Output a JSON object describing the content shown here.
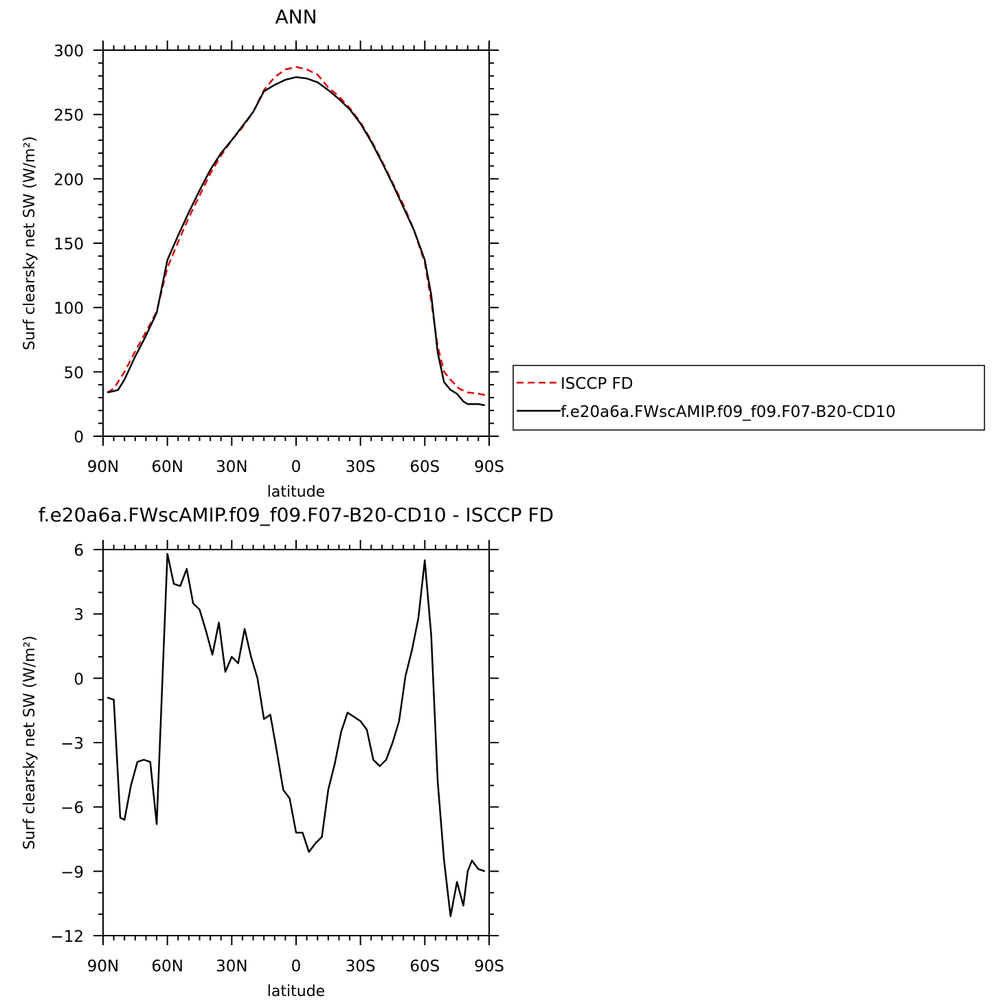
{
  "chart_data": [
    {
      "type": "line",
      "title": "ANN",
      "xlabel": "latitude",
      "ylabel": "Surf clearsky net SW (W/m²)",
      "xlim": [
        90,
        -90
      ],
      "ylim": [
        0,
        300
      ],
      "x_ticks": [
        {
          "value": 90,
          "label": "90N"
        },
        {
          "value": 60,
          "label": "60N"
        },
        {
          "value": 30,
          "label": "30N"
        },
        {
          "value": 0,
          "label": "0"
        },
        {
          "value": -30,
          "label": "30S"
        },
        {
          "value": -60,
          "label": "60S"
        },
        {
          "value": -90,
          "label": "90S"
        }
      ],
      "y_ticks": [
        0,
        50,
        100,
        150,
        200,
        250,
        300
      ],
      "legend_position": "right",
      "series": [
        {
          "name": "ISCCP FD",
          "color": "#e00000",
          "dash": "dashed",
          "x": [
            88,
            85,
            80,
            75,
            70,
            65,
            60,
            55,
            50,
            45,
            40,
            35,
            30,
            25,
            20,
            15,
            10,
            5,
            0,
            -5,
            -10,
            -15,
            -20,
            -25,
            -30,
            -35,
            -40,
            -45,
            -50,
            -55,
            -60,
            -63,
            -66,
            -69,
            -72,
            -76,
            -80,
            -85,
            -88
          ],
          "y": [
            34,
            37,
            50,
            66,
            81,
            97,
            131,
            151,
            170,
            187,
            204,
            218,
            230,
            240,
            252,
            269,
            279,
            285,
            287,
            285,
            281,
            271,
            264,
            255,
            244,
            230,
            214,
            197,
            180,
            160,
            135,
            105,
            70,
            50,
            44,
            37,
            34,
            33,
            32
          ]
        },
        {
          "name": "f.e20a6a.FWscAMIP.f09_f09.F07-B20-CD10",
          "color": "#000000",
          "dash": "solid",
          "x": [
            88,
            85,
            83,
            80,
            75,
            70,
            65,
            60,
            55,
            50,
            45,
            40,
            35,
            30,
            25,
            20,
            15,
            10,
            5,
            0,
            -5,
            -10,
            -15,
            -20,
            -25,
            -30,
            -35,
            -40,
            -45,
            -50,
            -55,
            -60,
            -63,
            -66,
            -69,
            -72,
            -75,
            -78,
            -80,
            -85,
            -88
          ],
          "y": [
            34,
            35,
            36,
            44,
            62,
            78,
            96,
            137,
            156,
            174,
            191,
            207,
            220,
            230,
            241,
            252,
            268,
            273,
            277,
            279,
            278,
            275,
            269,
            262,
            254,
            243,
            229,
            213,
            196,
            178,
            160,
            137,
            110,
            65,
            42,
            36,
            33,
            27,
            25,
            25,
            24
          ]
        }
      ]
    },
    {
      "type": "line",
      "title": "f.e20a6a.FWscAMIP.f09_f09.F07-B20-CD10 - ISCCP FD",
      "xlabel": "latitude",
      "ylabel": "Surf clearsky net SW (W/m²)",
      "xlim": [
        90,
        -90
      ],
      "ylim": [
        -12,
        6
      ],
      "x_ticks": [
        {
          "value": 90,
          "label": "90N"
        },
        {
          "value": 60,
          "label": "60N"
        },
        {
          "value": 30,
          "label": "30N"
        },
        {
          "value": 0,
          "label": "0"
        },
        {
          "value": -30,
          "label": "30S"
        },
        {
          "value": -60,
          "label": "60S"
        },
        {
          "value": -90,
          "label": "90S"
        }
      ],
      "y_ticks": [
        6,
        3,
        0,
        -3,
        -6,
        -9,
        -12
      ],
      "series": [
        {
          "color": "#000000",
          "x": [
            88,
            85,
            82,
            80,
            77,
            74,
            71,
            68,
            65,
            60,
            57,
            54,
            51,
            48,
            45,
            42,
            39,
            36,
            33,
            30,
            27,
            24,
            21,
            18,
            15,
            12,
            9,
            6,
            3,
            0,
            -3,
            -6,
            -9,
            -12,
            -15,
            -18,
            -21,
            -24,
            -27,
            -30,
            -33,
            -36,
            -39,
            -42,
            -45,
            -48,
            -51,
            -54,
            -57,
            -60,
            -63,
            -66,
            -69,
            -72,
            -75,
            -78,
            -80,
            -82,
            -85,
            -88
          ],
          "y": [
            -0.9,
            -1.0,
            -6.5,
            -6.6,
            -5.0,
            -3.9,
            -3.8,
            -3.9,
            -6.8,
            5.8,
            4.4,
            4.3,
            5.1,
            3.5,
            3.2,
            2.2,
            1.1,
            2.6,
            0.3,
            1.0,
            0.7,
            2.3,
            1.0,
            0.0,
            -1.9,
            -1.7,
            -3.4,
            -5.2,
            -5.6,
            -7.2,
            -7.2,
            -8.1,
            -7.7,
            -7.4,
            -5.2,
            -4.0,
            -2.5,
            -1.6,
            -1.8,
            -2.0,
            -2.4,
            -3.8,
            -4.1,
            -3.8,
            -3.0,
            -2.0,
            0.1,
            1.3,
            2.8,
            5.5,
            2.0,
            -4.8,
            -8.5,
            -11.1,
            -9.5,
            -10.6,
            -9.0,
            -8.5,
            -8.9,
            -9.0
          ]
        }
      ]
    }
  ],
  "legend": {
    "entries": [
      {
        "label": "ISCCP FD",
        "color": "#e00000",
        "dash": "dashed"
      },
      {
        "label": "f.e20a6a.FWscAMIP.f09_f09.F07-B20-CD10",
        "color": "#000000",
        "dash": "solid"
      }
    ]
  },
  "top_plot_title": "ANN",
  "bottom_plot_title": "f.e20a6a.FWscAMIP.f09_f09.F07-B20-CD10 - ISCCP FD",
  "x_axis_label": "latitude",
  "y_axis_label": "Surf clearsky net SW (W/m²)"
}
